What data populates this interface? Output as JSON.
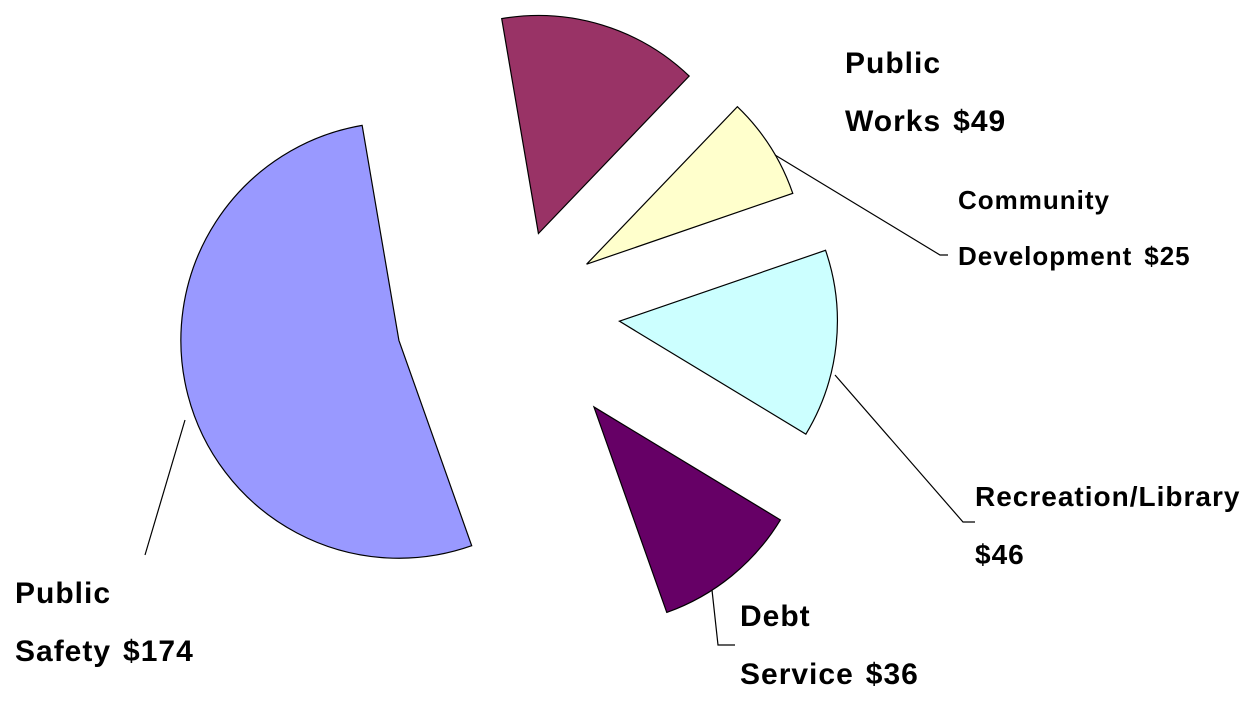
{
  "chart_data": {
    "type": "pie",
    "categories": [
      "Public Works",
      "Community Development",
      "Recreation/Library",
      "Debt Service",
      "Public Safety"
    ],
    "values": [
      49,
      25,
      46,
      36,
      174
    ],
    "value_labels": [
      "$49",
      "$25",
      "$46",
      "$36",
      "$174"
    ],
    "colors": [
      "#993366",
      "#ffffcc",
      "#ccffff",
      "#660066",
      "#9999ff"
    ],
    "exploded": true
  }
}
